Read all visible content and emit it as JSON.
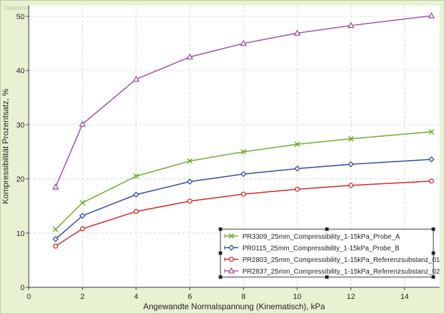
{
  "watermark": "Diagramm",
  "colors": {
    "frame_bg": "#e8f2d2",
    "plot_bg": "#ffffff",
    "grid": "#d9d9d9",
    "legend_box": "#333333"
  },
  "chart_data": {
    "type": "line",
    "title": "",
    "xlabel": "Angewandte Normalspannung (Kinematisch), kPa",
    "ylabel": "Kompressibilität Prozentsatz, %",
    "xlim": [
      0,
      15.3
    ],
    "ylim": [
      0,
      52
    ],
    "xticks": [
      0,
      2,
      4,
      6,
      8,
      10,
      12,
      14
    ],
    "yticks": [
      0,
      10,
      20,
      30,
      40,
      50
    ],
    "grid": true,
    "legend_position": "bottom-right",
    "x": [
      1,
      2,
      4,
      6,
      8,
      10,
      12,
      15
    ],
    "series": [
      {
        "name": "PR3309_25mm_Compressibility_1-15kPa_Probe_A",
        "color": "#6aaa2a",
        "marker": "x",
        "values": [
          10.7,
          15.6,
          20.5,
          23.3,
          25.0,
          26.4,
          27.4,
          28.7
        ]
      },
      {
        "name": "PR0115_25mm_Compressibility_1-15kPa_Probe_B",
        "color": "#3048a0",
        "marker": "diamond",
        "values": [
          8.9,
          13.2,
          17.1,
          19.5,
          20.9,
          21.9,
          22.7,
          23.6
        ]
      },
      {
        "name": "PR2803_25mm_Compressibility_1-15kPa_Referenzsubstanz_01",
        "color": "#d42020",
        "marker": "circle",
        "values": [
          7.6,
          10.8,
          14.0,
          15.9,
          17.2,
          18.1,
          18.8,
          19.6
        ]
      },
      {
        "name": "PR2837_25mm_Compressibility_1-15kPa_Referenzsubstanz_02",
        "color": "#a04ca0",
        "marker": "triangle",
        "values": [
          18.5,
          30.1,
          38.4,
          42.5,
          45.0,
          46.9,
          48.3,
          50.1
        ]
      }
    ]
  }
}
